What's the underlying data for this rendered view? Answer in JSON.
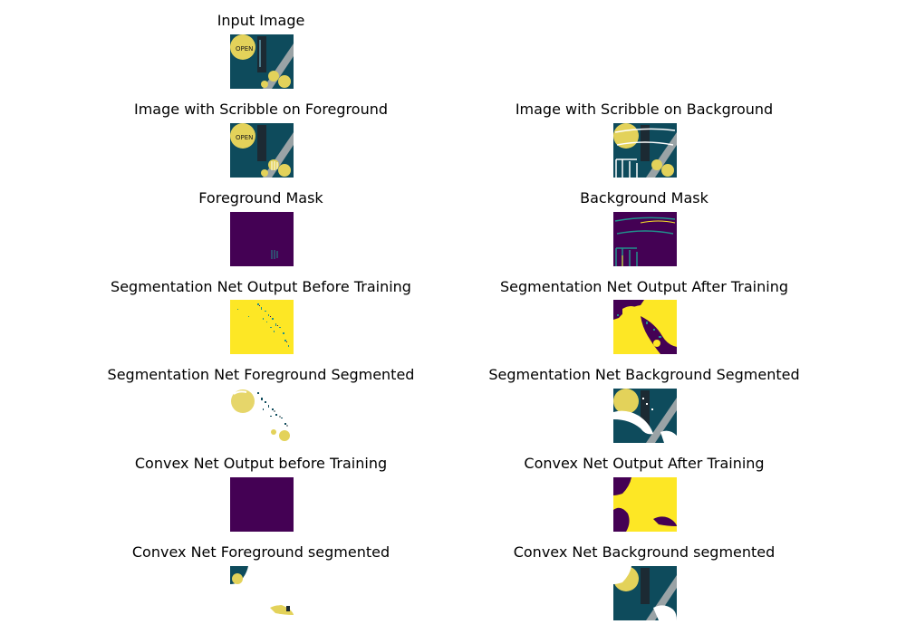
{
  "panels": {
    "input_image": "Input Image",
    "scribble_fg": "Image with Scribble on Foreground",
    "scribble_bg": "Image with Scribble on Background",
    "fg_mask": "Foreground Mask",
    "bg_mask": "Background Mask",
    "seg_before": "Segmentation Net Output Before Training",
    "seg_after": "Segmentation Net Output After Training",
    "seg_fg": "Segmentation Net Foreground Segmented",
    "seg_bg": "Segmentation Net Background Segmented",
    "convex_before": "Convex Net Output before Training",
    "convex_after": "Convex Net Output After Training",
    "convex_fg": "Convex Net Foreground segmented",
    "convex_bg": "Convex Net Background segmented"
  },
  "colors": {
    "teal": "#0e4b5c",
    "ball": "#e3d25a",
    "viridis_low": "#440154",
    "viridis_high": "#fde725",
    "viridis_mid": "#21918c"
  }
}
